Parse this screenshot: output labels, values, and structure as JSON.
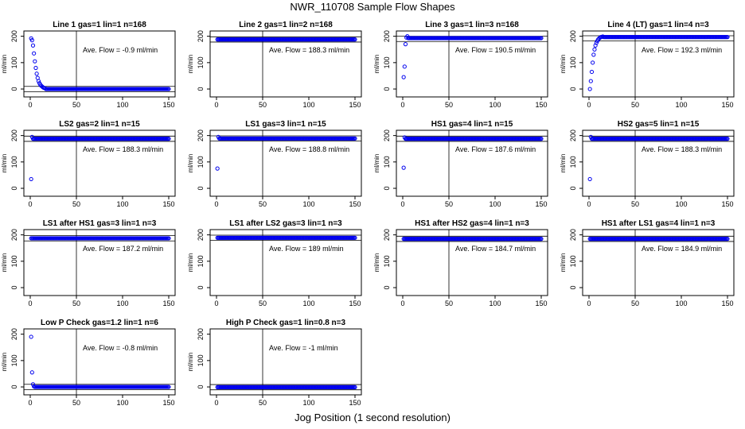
{
  "page": {
    "title": "NWR_110708  Sample Flow Shapes",
    "xlabel": "Jog Position (1 second resolution)"
  },
  "chart_data": [
    {
      "type": "scatter",
      "title": "Line 1 gas=1 lin=1 n=168",
      "ylabel": "ml/min",
      "annotation": "Ave. Flow =  -0.9  ml/min",
      "xlim": [
        0,
        150
      ],
      "ylim": [
        -30,
        220
      ],
      "x_ticks": [
        0,
        50,
        100,
        150
      ],
      "y_ticks": [
        0,
        100,
        200
      ],
      "hlines": [
        10,
        -10
      ],
      "vline": 50,
      "shape": {
        "first": [
          192,
          185,
          165,
          135,
          105,
          80,
          58,
          42,
          30,
          22,
          16,
          12,
          9,
          6,
          4,
          3
        ],
        "plateau": 0
      }
    },
    {
      "type": "scatter",
      "title": "Line 2 gas=1 lin=2 n=168",
      "ylabel": "ml/min",
      "annotation": "Ave. Flow =  188.3  ml/min",
      "xlim": [
        0,
        150
      ],
      "ylim": [
        -30,
        220
      ],
      "x_ticks": [
        0,
        50,
        100,
        150
      ],
      "y_ticks": [
        0,
        100,
        200
      ],
      "hlines": [
        198,
        178
      ],
      "vline": 50,
      "shape": {
        "first": [],
        "plateau": 188
      }
    },
    {
      "type": "scatter",
      "title": "Line 3 gas=1 lin=3 n=168",
      "ylabel": "ml/min",
      "annotation": "Ave. Flow =  190.5  ml/min",
      "xlim": [
        0,
        150
      ],
      "ylim": [
        -30,
        220
      ],
      "x_ticks": [
        0,
        50,
        100,
        150
      ],
      "y_ticks": [
        0,
        100,
        200
      ],
      "hlines": [
        200,
        180
      ],
      "vline": 50,
      "shape": {
        "first": [
          45,
          85,
          170,
          195,
          200
        ],
        "plateau": 193
      }
    },
    {
      "type": "scatter",
      "title": "Line 4 (LT) gas=1 lin=4 n=3",
      "ylabel": "ml/min",
      "annotation": "Ave. Flow =  192.3  ml/min",
      "xlim": [
        0,
        150
      ],
      "ylim": [
        -30,
        220
      ],
      "x_ticks": [
        0,
        50,
        100,
        150
      ],
      "y_ticks": [
        0,
        100,
        200
      ],
      "hlines": [
        202,
        182
      ],
      "vline": 50,
      "shape": {
        "first": [
          0,
          30,
          65,
          100,
          130,
          150,
          165,
          175,
          182,
          188,
          192,
          195,
          197,
          198,
          199
        ],
        "plateau": 197
      }
    },
    {
      "type": "scatter",
      "title": "LS2 gas=2 lin=1 n=15",
      "ylabel": "ml/min",
      "annotation": "Ave. Flow =  188.3  ml/min",
      "xlim": [
        0,
        150
      ],
      "ylim": [
        -30,
        220
      ],
      "x_ticks": [
        0,
        50,
        100,
        150
      ],
      "y_ticks": [
        0,
        100,
        200
      ],
      "hlines": [
        198,
        178
      ],
      "vline": 50,
      "shape": {
        "first": [
          35,
          195
        ],
        "plateau": 188
      }
    },
    {
      "type": "scatter",
      "title": "LS1 gas=3 lin=1 n=15",
      "ylabel": "ml/min",
      "annotation": "Ave. Flow =  188.8  ml/min",
      "xlim": [
        0,
        150
      ],
      "ylim": [
        -30,
        220
      ],
      "x_ticks": [
        0,
        50,
        100,
        150
      ],
      "y_ticks": [
        0,
        100,
        200
      ],
      "hlines": [
        199,
        179
      ],
      "vline": 50,
      "shape": {
        "first": [
          75,
          195
        ],
        "plateau": 189
      }
    },
    {
      "type": "scatter",
      "title": "HS1 gas=4 lin=1 n=15",
      "ylabel": "ml/min",
      "annotation": "Ave. Flow =  187.6  ml/min",
      "xlim": [
        0,
        150
      ],
      "ylim": [
        -30,
        220
      ],
      "x_ticks": [
        0,
        50,
        100,
        150
      ],
      "y_ticks": [
        0,
        100,
        200
      ],
      "hlines": [
        198,
        178
      ],
      "vline": 50,
      "shape": {
        "first": [
          78,
          193
        ],
        "plateau": 188
      }
    },
    {
      "type": "scatter",
      "title": "HS2 gas=5 lin=1 n=15",
      "ylabel": "ml/min",
      "annotation": "Ave. Flow =  188.3  ml/min",
      "xlim": [
        0,
        150
      ],
      "ylim": [
        -30,
        220
      ],
      "x_ticks": [
        0,
        50,
        100,
        150
      ],
      "y_ticks": [
        0,
        100,
        200
      ],
      "hlines": [
        198,
        178
      ],
      "vline": 50,
      "shape": {
        "first": [
          35,
          195
        ],
        "plateau": 188
      }
    },
    {
      "type": "scatter",
      "title": "LS1 after HS1 gas=3 lin=1 n=3",
      "ylabel": "ml/min",
      "annotation": "Ave. Flow =  187.2  ml/min",
      "xlim": [
        0,
        150
      ],
      "ylim": [
        -30,
        220
      ],
      "x_ticks": [
        0,
        50,
        100,
        150
      ],
      "y_ticks": [
        0,
        100,
        200
      ],
      "hlines": [
        197,
        177
      ],
      "vline": 50,
      "shape": {
        "first": [],
        "plateau": 187
      }
    },
    {
      "type": "scatter",
      "title": "LS1 after LS2 gas=3 lin=1 n=3",
      "ylabel": "ml/min",
      "annotation": "Ave. Flow =  189  ml/min",
      "xlim": [
        0,
        150
      ],
      "ylim": [
        -30,
        220
      ],
      "x_ticks": [
        0,
        50,
        100,
        150
      ],
      "y_ticks": [
        0,
        100,
        200
      ],
      "hlines": [
        199,
        179
      ],
      "vline": 50,
      "shape": {
        "first": [],
        "plateau": 189
      }
    },
    {
      "type": "scatter",
      "title": "HS1 after HS2 gas=4 lin=1 n=3",
      "ylabel": "ml/min",
      "annotation": "Ave. Flow =  184.7  ml/min",
      "xlim": [
        0,
        150
      ],
      "ylim": [
        -30,
        220
      ],
      "x_ticks": [
        0,
        50,
        100,
        150
      ],
      "y_ticks": [
        0,
        100,
        200
      ],
      "hlines": [
        195,
        175
      ],
      "vline": 50,
      "shape": {
        "first": [],
        "plateau": 185
      }
    },
    {
      "type": "scatter",
      "title": "HS1 after LS1 gas=4 lin=1 n=3",
      "ylabel": "ml/min",
      "annotation": "Ave. Flow =  184.9  ml/min",
      "xlim": [
        0,
        150
      ],
      "ylim": [
        -30,
        220
      ],
      "x_ticks": [
        0,
        50,
        100,
        150
      ],
      "y_ticks": [
        0,
        100,
        200
      ],
      "hlines": [
        195,
        175
      ],
      "vline": 50,
      "shape": {
        "first": [],
        "plateau": 185
      }
    },
    {
      "type": "scatter",
      "title": "Low P Check gas=1.2 lin=1 n=6",
      "ylabel": "ml/min",
      "annotation": "Ave. Flow =  -0.8  ml/min",
      "xlim": [
        0,
        150
      ],
      "ylim": [
        -30,
        220
      ],
      "x_ticks": [
        0,
        50,
        100,
        150
      ],
      "y_ticks": [
        0,
        100,
        200
      ],
      "hlines": [
        10,
        -10
      ],
      "vline": 50,
      "shape": {
        "first": [
          190,
          55,
          10,
          2
        ],
        "plateau": 0
      }
    },
    {
      "type": "scatter",
      "title": "High P Check gas=1 lin=0.8 n=3",
      "ylabel": "ml/min",
      "annotation": "Ave. Flow =  -1  ml/min",
      "xlim": [
        0,
        150
      ],
      "ylim": [
        -30,
        220
      ],
      "x_ticks": [
        0,
        50,
        100,
        150
      ],
      "y_ticks": [
        0,
        100,
        200
      ],
      "hlines": [
        9,
        -11
      ],
      "vline": 50,
      "shape": {
        "first": [],
        "plateau": -1
      }
    }
  ]
}
